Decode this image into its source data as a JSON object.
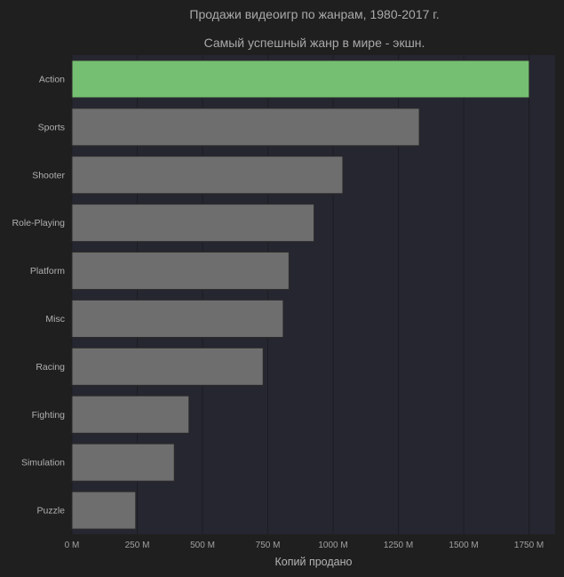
{
  "chart_data": {
    "type": "bar",
    "orientation": "horizontal",
    "title": "Продажи видеоигр по жанрам, 1980-2017 г.",
    "subtitle": "Самый успешный жанр в мире - экшн.",
    "xlabel": "Копий продано",
    "ylabel": "",
    "categories": [
      "Action",
      "Sports",
      "Shooter",
      "Role-Playing",
      "Platform",
      "Misc",
      "Racing",
      "Fighting",
      "Simulation",
      "Puzzle"
    ],
    "values": [
      1751,
      1330,
      1037,
      927,
      831,
      809,
      732,
      448,
      392,
      244
    ],
    "xlim": [
      0,
      1850
    ],
    "xticks": [
      0,
      250,
      500,
      750,
      1000,
      1250,
      1500,
      1750
    ],
    "xtick_labels": [
      "0 M",
      "250 M",
      "500 M",
      "750 M",
      "1000 M",
      "1250 M",
      "1500 M",
      "1750 M"
    ],
    "grid": true,
    "highlight_category": "Action",
    "colors": {
      "page_background": "#1f1f1f",
      "plot_background": "#262631",
      "highlight_bar": "#75bf72",
      "bar": "#6e6e6e",
      "bar_edge": "#2a2a2a",
      "gridline": "#1c1c23",
      "text": "#a9a9a9"
    }
  }
}
